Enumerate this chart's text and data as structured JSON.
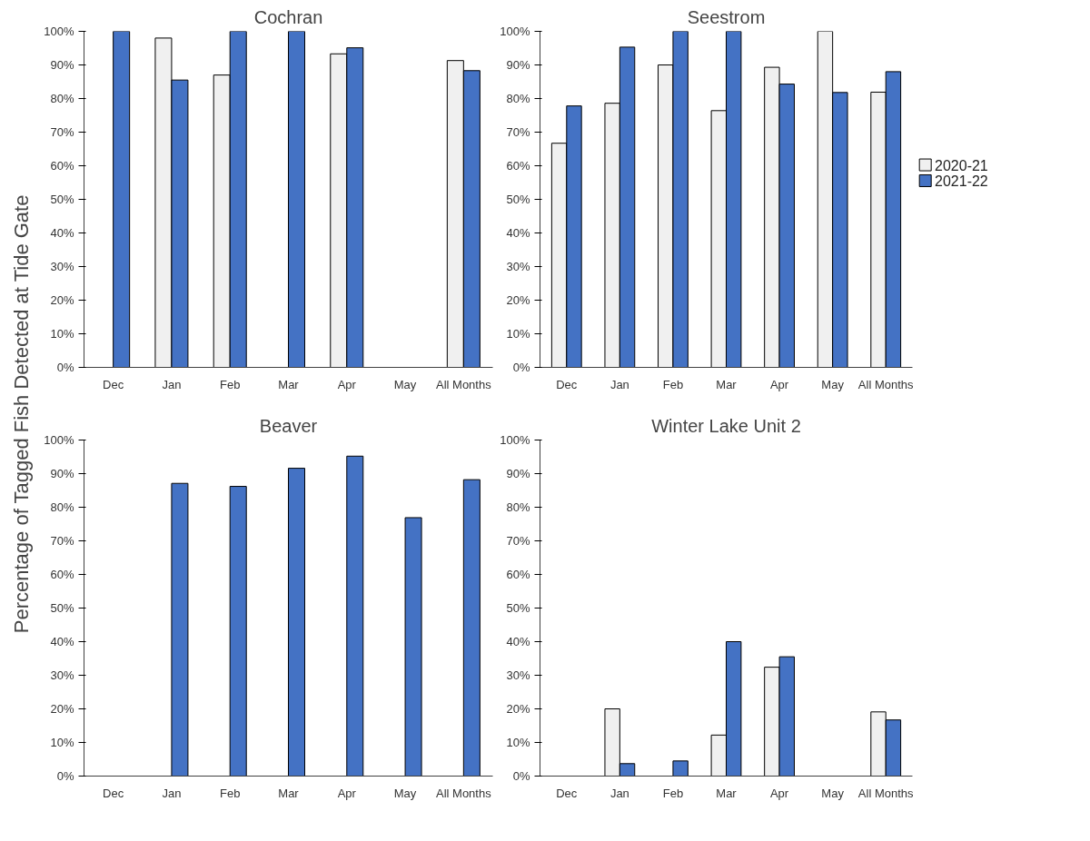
{
  "chart_data": [
    {
      "type": "bar",
      "title": "Cochran",
      "ylabel": "Percentage of Tagged Fish Detected at Tide Gate",
      "categories": [
        "Dec",
        "Jan",
        "Feb",
        "Mar",
        "Apr",
        "May",
        "All Months"
      ],
      "series": [
        {
          "color": "#f0f0f0",
          "values": [
            null,
            98,
            87,
            null,
            93.3,
            null,
            91.3
          ]
        },
        {
          "color": "#4472c4",
          "values": [
            100,
            85.5,
            100,
            100,
            95.1,
            null,
            88.3
          ]
        }
      ],
      "ylim": [
        0,
        100
      ],
      "yticks": [
        {
          "value": 0,
          "label": "0%"
        },
        {
          "value": 10,
          "label": "10%"
        },
        {
          "value": 20,
          "label": "20%"
        },
        {
          "value": 30,
          "label": "30%"
        },
        {
          "value": 40,
          "label": "40%"
        },
        {
          "value": 50,
          "label": "50%"
        },
        {
          "value": 60,
          "label": "60%"
        },
        {
          "value": 70,
          "label": "70%"
        },
        {
          "value": 80,
          "label": "80%"
        },
        {
          "value": 90,
          "label": "90%"
        },
        {
          "value": 100,
          "label": "100%"
        }
      ],
      "grid": false
    },
    {
      "type": "bar",
      "title": "Seestrom",
      "categories": [
        "Dec",
        "Jan",
        "Feb",
        "Mar",
        "Apr",
        "May",
        "All Months"
      ],
      "series": [
        {
          "name": "2020-21",
          "color": "#f0f0f0",
          "values": [
            66.7,
            78.6,
            90,
            76.4,
            89.3,
            100,
            81.9
          ]
        },
        {
          "name": "2021-22",
          "color": "#4472c4",
          "values": [
            77.8,
            95.3,
            100,
            100,
            84.3,
            81.8,
            88
          ]
        }
      ],
      "ylim": [
        0,
        100
      ],
      "yticks": [
        {
          "value": 0,
          "label": "0%"
        },
        {
          "value": 10,
          "label": "10%"
        },
        {
          "value": 20,
          "label": "20%"
        },
        {
          "value": 30,
          "label": "30%"
        },
        {
          "value": 40,
          "label": "40%"
        },
        {
          "value": 50,
          "label": "50%"
        },
        {
          "value": 60,
          "label": "60%"
        },
        {
          "value": 70,
          "label": "70%"
        },
        {
          "value": 80,
          "label": "80%"
        },
        {
          "value": 90,
          "label": "90%"
        },
        {
          "value": 100,
          "label": "100%"
        }
      ],
      "grid": false,
      "legend": "right"
    },
    {
      "type": "bar",
      "title": "Beaver",
      "categories": [
        "Dec",
        "Jan",
        "Feb",
        "Mar",
        "Apr",
        "May",
        "All Months"
      ],
      "series": [
        {
          "color": "#4472c4",
          "values": [
            null,
            87.1,
            86.2,
            91.6,
            95.2,
            76.9,
            88.2
          ]
        }
      ],
      "ylim": [
        0,
        100
      ],
      "yticks": [
        {
          "value": 0,
          "label": "0%"
        },
        {
          "value": 10,
          "label": "10%"
        },
        {
          "value": 20,
          "label": "20%"
        },
        {
          "value": 30,
          "label": "30%"
        },
        {
          "value": 40,
          "label": "40%"
        },
        {
          "value": 50,
          "label": "50%"
        },
        {
          "value": 60,
          "label": "60%"
        },
        {
          "value": 70,
          "label": "70%"
        },
        {
          "value": 80,
          "label": "80%"
        },
        {
          "value": 90,
          "label": "90%"
        },
        {
          "value": 100,
          "label": "100%"
        }
      ],
      "grid": false
    },
    {
      "type": "bar",
      "title": "Winter Lake Unit 2",
      "categories": [
        "Dec",
        "Jan",
        "Feb",
        "Mar",
        "Apr",
        "May",
        "All Months"
      ],
      "series": [
        {
          "color": "#f0f0f0",
          "values": [
            null,
            20,
            null,
            12.2,
            32.4,
            null,
            19.1
          ]
        },
        {
          "color": "#4472c4",
          "values": [
            null,
            3.7,
            4.5,
            40,
            35.5,
            null,
            16.7
          ]
        }
      ],
      "ylim": [
        0,
        100
      ],
      "yticks": [
        {
          "value": 0,
          "label": "0%"
        },
        {
          "value": 10,
          "label": "10%"
        },
        {
          "value": 20,
          "label": "20%"
        },
        {
          "value": 30,
          "label": "30%"
        },
        {
          "value": 40,
          "label": "40%"
        },
        {
          "value": 50,
          "label": "50%"
        },
        {
          "value": 60,
          "label": "60%"
        },
        {
          "value": 70,
          "label": "70%"
        },
        {
          "value": 80,
          "label": "80%"
        },
        {
          "value": 90,
          "label": "90%"
        },
        {
          "value": 100,
          "label": "100%"
        }
      ],
      "grid": false
    }
  ]
}
